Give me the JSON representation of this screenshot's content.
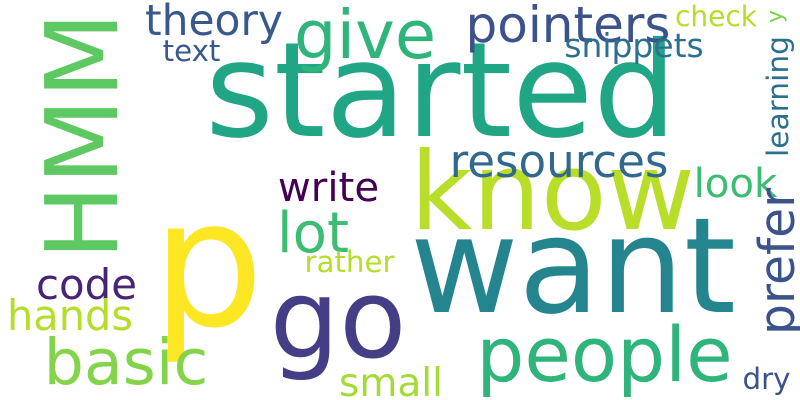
{
  "words": [
    {
      "text": "p",
      "color": "#fde725"
    },
    {
      "text": "started",
      "color": "#21a685"
    },
    {
      "text": "want",
      "color": "#25858e"
    },
    {
      "text": "know",
      "color": "#b8de29"
    },
    {
      "text": "HMM",
      "color": "#5ec962"
    },
    {
      "text": "go",
      "color": "#433e85"
    },
    {
      "text": "people",
      "color": "#2fb47c"
    },
    {
      "text": "basic",
      "color": "#84d44b"
    },
    {
      "text": "give",
      "color": "#2fb47c"
    },
    {
      "text": "theory",
      "color": "#38598c"
    },
    {
      "text": "pointers",
      "color": "#3b528b"
    },
    {
      "text": "resources",
      "color": "#31688e"
    },
    {
      "text": "write",
      "color": "#440154"
    },
    {
      "text": "lot",
      "color": "#3dbc74"
    },
    {
      "text": "look",
      "color": "#3dbc74"
    },
    {
      "text": "prefer",
      "color": "#3b528b"
    },
    {
      "text": "code",
      "color": "#482475"
    },
    {
      "text": "hands",
      "color": "#b5de2b"
    },
    {
      "text": "small",
      "color": "#a5db36"
    },
    {
      "text": "rather",
      "color": "#b5de2b"
    },
    {
      "text": "snippets",
      "color": "#2d708e"
    },
    {
      "text": "text",
      "color": "#38598c"
    },
    {
      "text": "check",
      "color": "#b5de2b"
    },
    {
      "text": "learning",
      "color": "#2d708e"
    },
    {
      "text": "dry",
      "color": "#3b528b"
    },
    {
      "text": "y",
      "color": "#7ad151"
    }
  ]
}
